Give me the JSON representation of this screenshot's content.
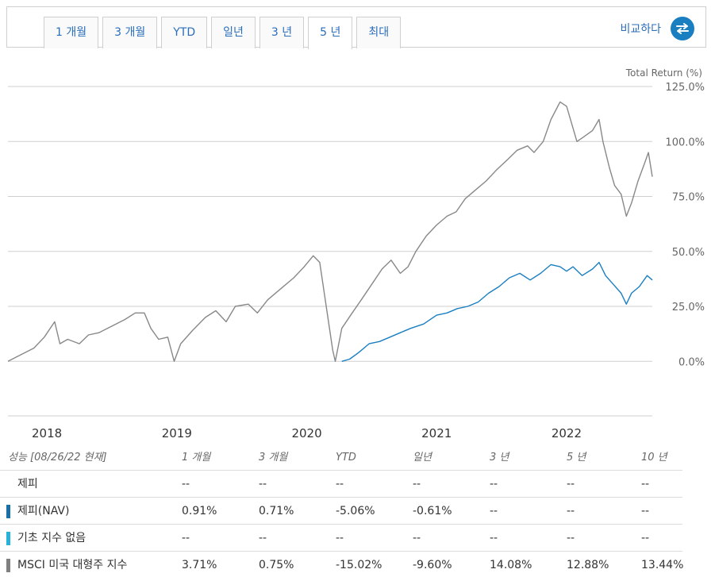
{
  "tabs": [
    "1 개월",
    "3 개월",
    "YTD",
    "일년",
    "3 년",
    "5 년",
    "최대"
  ],
  "active_tab_index": 5,
  "compare": {
    "label": "비교하다",
    "icon": "swap-arrows-icon",
    "icon_color": "#1a7fc1"
  },
  "chart_data": {
    "type": "line",
    "ylabel": "Total Return (%)",
    "y_ticks": [
      "125.0%",
      "100.0%",
      "75.0%",
      "50.0%",
      "25.0%",
      "0.0%"
    ],
    "ylim": [
      -25,
      125
    ],
    "x_ticks": [
      "2018",
      "2019",
      "2020",
      "2021",
      "2022"
    ],
    "x_tick_dates": [
      2018.0,
      2019.0,
      2020.0,
      2021.0,
      2022.0
    ],
    "xlim": [
      2017.7,
      2022.66
    ],
    "grid": true,
    "series": [
      {
        "name": "MSCI 미국 대형주 지수",
        "color": "#888888",
        "points": [
          [
            2017.7,
            0
          ],
          [
            2017.8,
            3
          ],
          [
            2017.9,
            6
          ],
          [
            2017.98,
            11
          ],
          [
            2018.06,
            18
          ],
          [
            2018.1,
            8
          ],
          [
            2018.16,
            10
          ],
          [
            2018.25,
            8
          ],
          [
            2018.32,
            12
          ],
          [
            2018.4,
            13
          ],
          [
            2018.5,
            16
          ],
          [
            2018.6,
            19
          ],
          [
            2018.68,
            22
          ],
          [
            2018.75,
            22
          ],
          [
            2018.8,
            15
          ],
          [
            2018.86,
            10
          ],
          [
            2018.93,
            11
          ],
          [
            2018.98,
            0
          ],
          [
            2019.03,
            8
          ],
          [
            2019.12,
            14
          ],
          [
            2019.22,
            20
          ],
          [
            2019.3,
            23
          ],
          [
            2019.38,
            18
          ],
          [
            2019.45,
            25
          ],
          [
            2019.55,
            26
          ],
          [
            2019.62,
            22
          ],
          [
            2019.7,
            28
          ],
          [
            2019.8,
            33
          ],
          [
            2019.9,
            38
          ],
          [
            2019.98,
            43
          ],
          [
            2020.05,
            48
          ],
          [
            2020.1,
            45
          ],
          [
            2020.15,
            25
          ],
          [
            2020.2,
            5
          ],
          [
            2020.22,
            0
          ],
          [
            2020.27,
            15
          ],
          [
            2020.35,
            22
          ],
          [
            2020.42,
            28
          ],
          [
            2020.5,
            35
          ],
          [
            2020.58,
            42
          ],
          [
            2020.65,
            46
          ],
          [
            2020.72,
            40
          ],
          [
            2020.78,
            43
          ],
          [
            2020.84,
            50
          ],
          [
            2020.92,
            57
          ],
          [
            2021.0,
            62
          ],
          [
            2021.08,
            66
          ],
          [
            2021.15,
            68
          ],
          [
            2021.22,
            74
          ],
          [
            2021.3,
            78
          ],
          [
            2021.38,
            82
          ],
          [
            2021.46,
            87
          ],
          [
            2021.55,
            92
          ],
          [
            2021.62,
            96
          ],
          [
            2021.7,
            98
          ],
          [
            2021.75,
            95
          ],
          [
            2021.82,
            100
          ],
          [
            2021.88,
            110
          ],
          [
            2021.95,
            118
          ],
          [
            2022.0,
            116
          ],
          [
            2022.04,
            108
          ],
          [
            2022.08,
            100
          ],
          [
            2022.13,
            102
          ],
          [
            2022.2,
            105
          ],
          [
            2022.25,
            110
          ],
          [
            2022.28,
            100
          ],
          [
            2022.33,
            88
          ],
          [
            2022.37,
            80
          ],
          [
            2022.42,
            76
          ],
          [
            2022.46,
            66
          ],
          [
            2022.5,
            72
          ],
          [
            2022.55,
            82
          ],
          [
            2022.6,
            90
          ],
          [
            2022.63,
            95
          ],
          [
            2022.66,
            84
          ]
        ]
      },
      {
        "name": "제피(NAV)",
        "color": "#1a7fc1",
        "points": [
          [
            2020.27,
            0
          ],
          [
            2020.33,
            1
          ],
          [
            2020.4,
            4
          ],
          [
            2020.48,
            8
          ],
          [
            2020.56,
            9
          ],
          [
            2020.64,
            11
          ],
          [
            2020.72,
            13
          ],
          [
            2020.8,
            15
          ],
          [
            2020.9,
            17
          ],
          [
            2021.0,
            21
          ],
          [
            2021.08,
            22
          ],
          [
            2021.16,
            24
          ],
          [
            2021.24,
            25
          ],
          [
            2021.32,
            27
          ],
          [
            2021.4,
            31
          ],
          [
            2021.48,
            34
          ],
          [
            2021.56,
            38
          ],
          [
            2021.64,
            40
          ],
          [
            2021.72,
            37
          ],
          [
            2021.8,
            40
          ],
          [
            2021.88,
            44
          ],
          [
            2021.95,
            43
          ],
          [
            2022.0,
            41
          ],
          [
            2022.05,
            43
          ],
          [
            2022.12,
            39
          ],
          [
            2022.2,
            42
          ],
          [
            2022.25,
            45
          ],
          [
            2022.3,
            39
          ],
          [
            2022.36,
            35
          ],
          [
            2022.42,
            31
          ],
          [
            2022.46,
            26
          ],
          [
            2022.5,
            31
          ],
          [
            2022.56,
            34
          ],
          [
            2022.62,
            39
          ],
          [
            2022.66,
            37
          ]
        ]
      }
    ]
  },
  "performance": {
    "header_label": "성능 [08/26/22 현재]",
    "columns": [
      "1 개월",
      "3 개월",
      "YTD",
      "일년",
      "3 년",
      "5 년",
      "10 년"
    ],
    "rows": [
      {
        "label": "제피",
        "color": "",
        "values": [
          "--",
          "--",
          "--",
          "--",
          "--",
          "--",
          "--"
        ]
      },
      {
        "label": "제피(NAV)",
        "color": "#1a6fa8",
        "values": [
          "0.91%",
          "0.71%",
          "-5.06%",
          "-0.61%",
          "--",
          "--",
          "--"
        ]
      },
      {
        "label": "기초 지수 없음",
        "color": "#27b2dc",
        "values": [
          "--",
          "--",
          "--",
          "--",
          "--",
          "--",
          "--"
        ]
      },
      {
        "label": "MSCI 미국 대형주 지수",
        "color": "#808080",
        "values": [
          "3.71%",
          "0.75%",
          "-15.02%",
          "-9.60%",
          "14.08%",
          "12.88%",
          "13.44%"
        ]
      }
    ]
  }
}
